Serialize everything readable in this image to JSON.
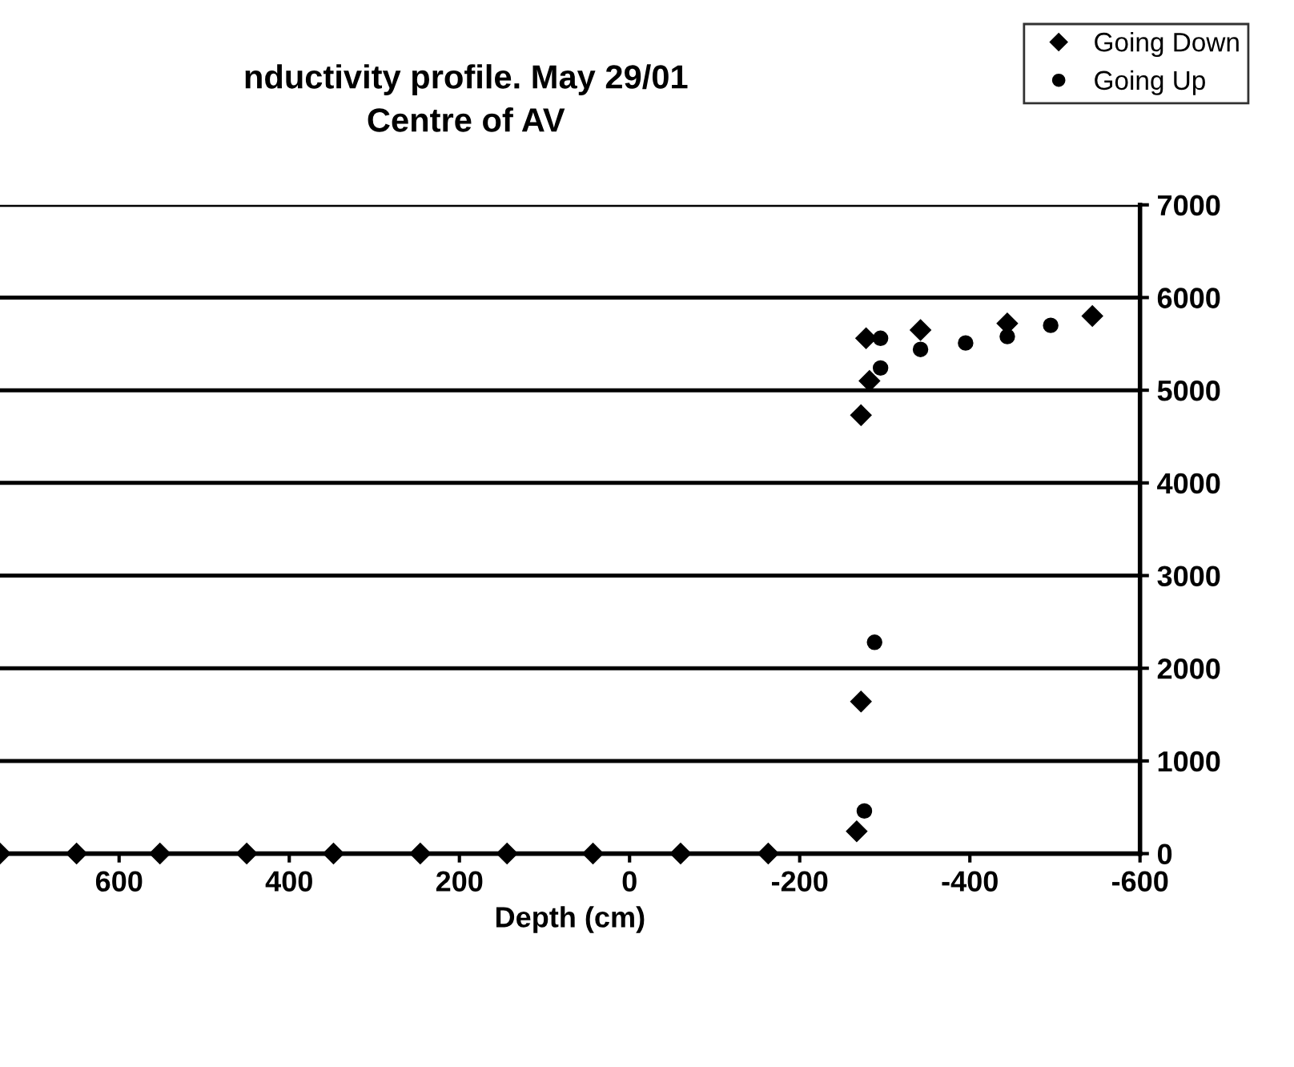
{
  "chart_data": {
    "type": "scatter",
    "title": "nductivity profile. May 29/01\nCentre of AV",
    "xlabel": "Depth (cm)",
    "xlim": [
      740,
      -600
    ],
    "xticks": [
      600,
      400,
      200,
      0,
      -200,
      -400,
      -600
    ],
    "ylim": [
      0,
      7000
    ],
    "yticks": [
      0,
      1000,
      2000,
      3000,
      4000,
      5000,
      6000,
      7000
    ],
    "grid": "y",
    "legend": "top right",
    "series": [
      {
        "name": "Going Down",
        "color": "#000000",
        "marker": "diamond",
        "x": [
          740,
          650,
          552,
          450,
          348,
          246,
          144,
          43,
          -60,
          -163,
          -267,
          -272,
          -272,
          -282,
          -278,
          -342,
          -444,
          -544
        ],
        "values": [
          0,
          0,
          0,
          0,
          0,
          0,
          0,
          0,
          0,
          0,
          240,
          1640,
          4730,
          5100,
          5560,
          5650,
          5720,
          5800
        ]
      },
      {
        "name": "Going Up",
        "color": "#000000",
        "marker": "circle",
        "x": [
          -276,
          -288,
          -295,
          -295,
          -342,
          -395,
          -444,
          -495
        ],
        "values": [
          460,
          2280,
          5240,
          5560,
          5440,
          5510,
          5580,
          5700
        ]
      }
    ]
  }
}
